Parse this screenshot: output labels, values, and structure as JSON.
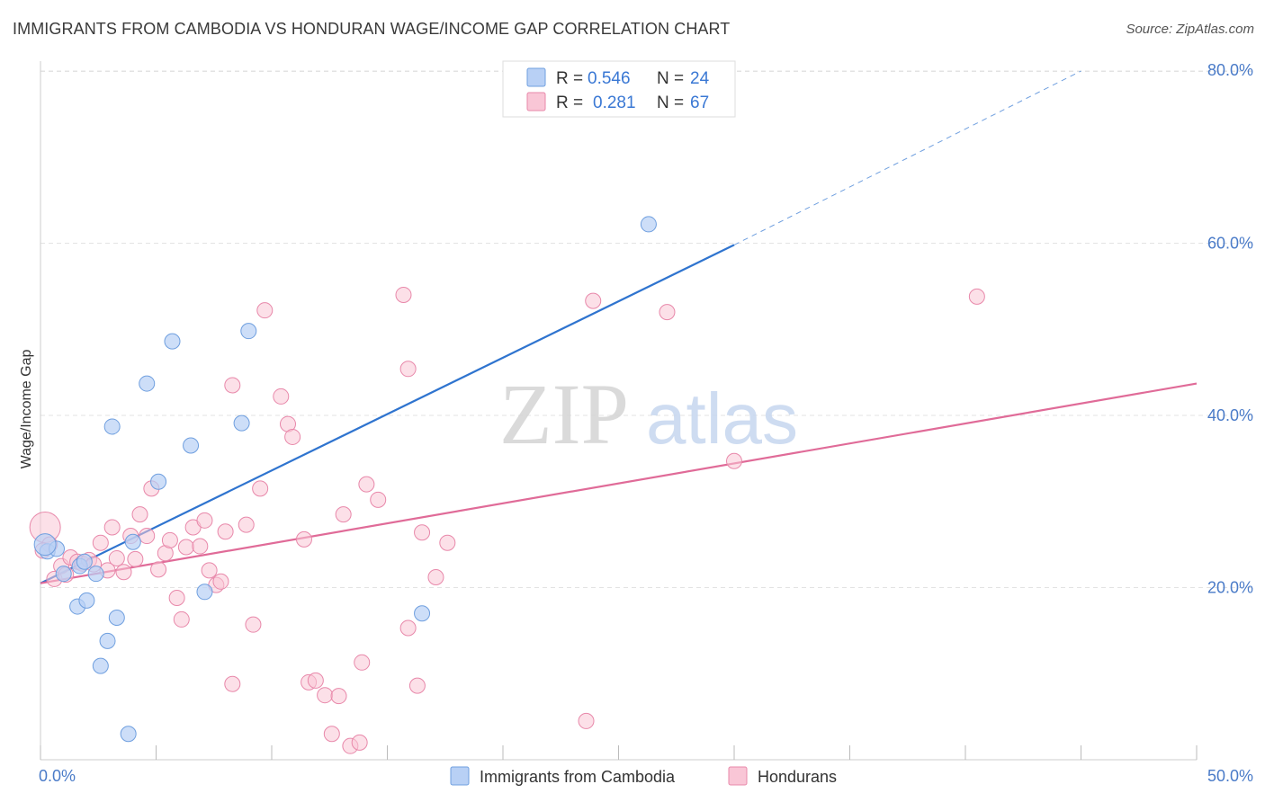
{
  "title": "IMMIGRANTS FROM CAMBODIA VS HONDURAN WAGE/INCOME GAP CORRELATION CHART",
  "source": "Source: ZipAtlas.com",
  "watermark": {
    "zip": "ZIP",
    "atlas": "atlas"
  },
  "colors": {
    "blue_fill": "#b8d0f5",
    "blue_stroke": "#6f9fdf",
    "blue_line": "#2f74cf",
    "pink_fill": "#f9c6d6",
    "pink_stroke": "#e888aa",
    "pink_line": "#e06b98",
    "grid": "#e3e3e3",
    "tick_text": "#4a7bc8"
  },
  "legend": {
    "rows": [
      {
        "r_label": "R =",
        "r_value": "0.546",
        "n_label": "N =",
        "n_value": "24"
      },
      {
        "r_label": "R =",
        "r_value": "0.281",
        "n_label": "N =",
        "n_value": "67"
      }
    ]
  },
  "chart_data": {
    "type": "scatter",
    "title": "IMMIGRANTS FROM CAMBODIA VS HONDURAN WAGE/INCOME GAP CORRELATION CHART",
    "xlabel": "",
    "ylabel": "Wage/Income Gap",
    "xlim": [
      0,
      50
    ],
    "ylim": [
      0,
      80
    ],
    "x_tick_labels": [
      "0.0%",
      "50.0%"
    ],
    "y_ticks": [
      20,
      40,
      60,
      80
    ],
    "y_tick_labels": [
      "20.0%",
      "40.0%",
      "60.0%",
      "80.0%"
    ],
    "grid": true,
    "legend_placement": "top-center",
    "series": [
      {
        "name": "Immigrants from Cambodia",
        "color": "#6f9fdf",
        "R": 0.546,
        "N": 24,
        "trend": {
          "x0": 0,
          "y0": 20.5,
          "x1": 30,
          "y1": 59.8,
          "dashed_to_x": 45,
          "dashed_to_y": 80
        },
        "points": [
          [
            0.3,
            24.2
          ],
          [
            0.7,
            24.5
          ],
          [
            1.0,
            21.6
          ],
          [
            1.6,
            17.8
          ],
          [
            1.7,
            22.5
          ],
          [
            2.0,
            18.5
          ],
          [
            2.4,
            21.6
          ],
          [
            2.6,
            10.9
          ],
          [
            2.9,
            13.8
          ],
          [
            3.3,
            16.5
          ],
          [
            3.1,
            38.7
          ],
          [
            3.8,
            3.0
          ],
          [
            4.0,
            25.3
          ],
          [
            4.6,
            43.7
          ],
          [
            5.1,
            32.3
          ],
          [
            5.7,
            48.6
          ],
          [
            6.5,
            36.5
          ],
          [
            7.1,
            19.5
          ],
          [
            8.7,
            39.1
          ],
          [
            9.0,
            49.8
          ],
          [
            16.5,
            17.0
          ],
          [
            26.3,
            62.2
          ],
          [
            0.2,
            25.0
          ],
          [
            1.9,
            23.0
          ]
        ]
      },
      {
        "name": "Hondurans",
        "color": "#e888aa",
        "R": 0.281,
        "N": 67,
        "trend": {
          "x0": 0,
          "y0": 20.5,
          "x1": 50,
          "y1": 43.7
        },
        "points": [
          [
            0.2,
            27.0
          ],
          [
            0.4,
            25.0
          ],
          [
            0.6,
            21.0
          ],
          [
            0.9,
            22.5
          ],
          [
            1.3,
            23.5
          ],
          [
            1.6,
            23.0
          ],
          [
            1.8,
            22.8
          ],
          [
            2.1,
            23.2
          ],
          [
            2.6,
            25.2
          ],
          [
            2.9,
            22.0
          ],
          [
            3.1,
            27.0
          ],
          [
            3.3,
            23.4
          ],
          [
            3.6,
            21.8
          ],
          [
            3.9,
            26.0
          ],
          [
            4.1,
            23.3
          ],
          [
            4.3,
            28.5
          ],
          [
            4.6,
            26.0
          ],
          [
            4.8,
            31.5
          ],
          [
            5.1,
            22.1
          ],
          [
            5.4,
            24.0
          ],
          [
            5.6,
            25.5
          ],
          [
            5.9,
            18.8
          ],
          [
            6.1,
            16.3
          ],
          [
            6.3,
            24.7
          ],
          [
            6.6,
            27.0
          ],
          [
            6.9,
            24.8
          ],
          [
            7.1,
            27.8
          ],
          [
            7.3,
            22.0
          ],
          [
            7.6,
            20.3
          ],
          [
            7.8,
            20.7
          ],
          [
            8.0,
            26.5
          ],
          [
            8.3,
            8.8
          ],
          [
            8.3,
            43.5
          ],
          [
            8.9,
            27.3
          ],
          [
            9.2,
            15.7
          ],
          [
            9.5,
            31.5
          ],
          [
            9.7,
            52.2
          ],
          [
            10.4,
            42.2
          ],
          [
            10.7,
            39.0
          ],
          [
            10.9,
            37.5
          ],
          [
            11.4,
            25.6
          ],
          [
            11.6,
            9.0
          ],
          [
            11.9,
            9.2
          ],
          [
            12.3,
            7.5
          ],
          [
            12.6,
            3.0
          ],
          [
            12.9,
            7.4
          ],
          [
            13.1,
            28.5
          ],
          [
            13.4,
            1.6
          ],
          [
            13.8,
            2.0
          ],
          [
            13.9,
            11.3
          ],
          [
            14.1,
            32.0
          ],
          [
            14.6,
            30.2
          ],
          [
            15.7,
            54.0
          ],
          [
            15.9,
            45.4
          ],
          [
            15.9,
            15.3
          ],
          [
            16.3,
            8.6
          ],
          [
            16.5,
            26.4
          ],
          [
            17.1,
            21.2
          ],
          [
            17.6,
            25.2
          ],
          [
            23.6,
            4.5
          ],
          [
            23.9,
            53.3
          ],
          [
            27.1,
            52.0
          ],
          [
            30.0,
            34.7
          ],
          [
            40.5,
            53.8
          ],
          [
            0.1,
            24.3
          ],
          [
            1.1,
            21.5
          ],
          [
            2.3,
            22.7
          ]
        ]
      }
    ]
  },
  "bottom_legend": [
    {
      "label": "Immigrants from Cambodia",
      "color_key": "blue"
    },
    {
      "label": "Hondurans",
      "color_key": "pink"
    }
  ]
}
